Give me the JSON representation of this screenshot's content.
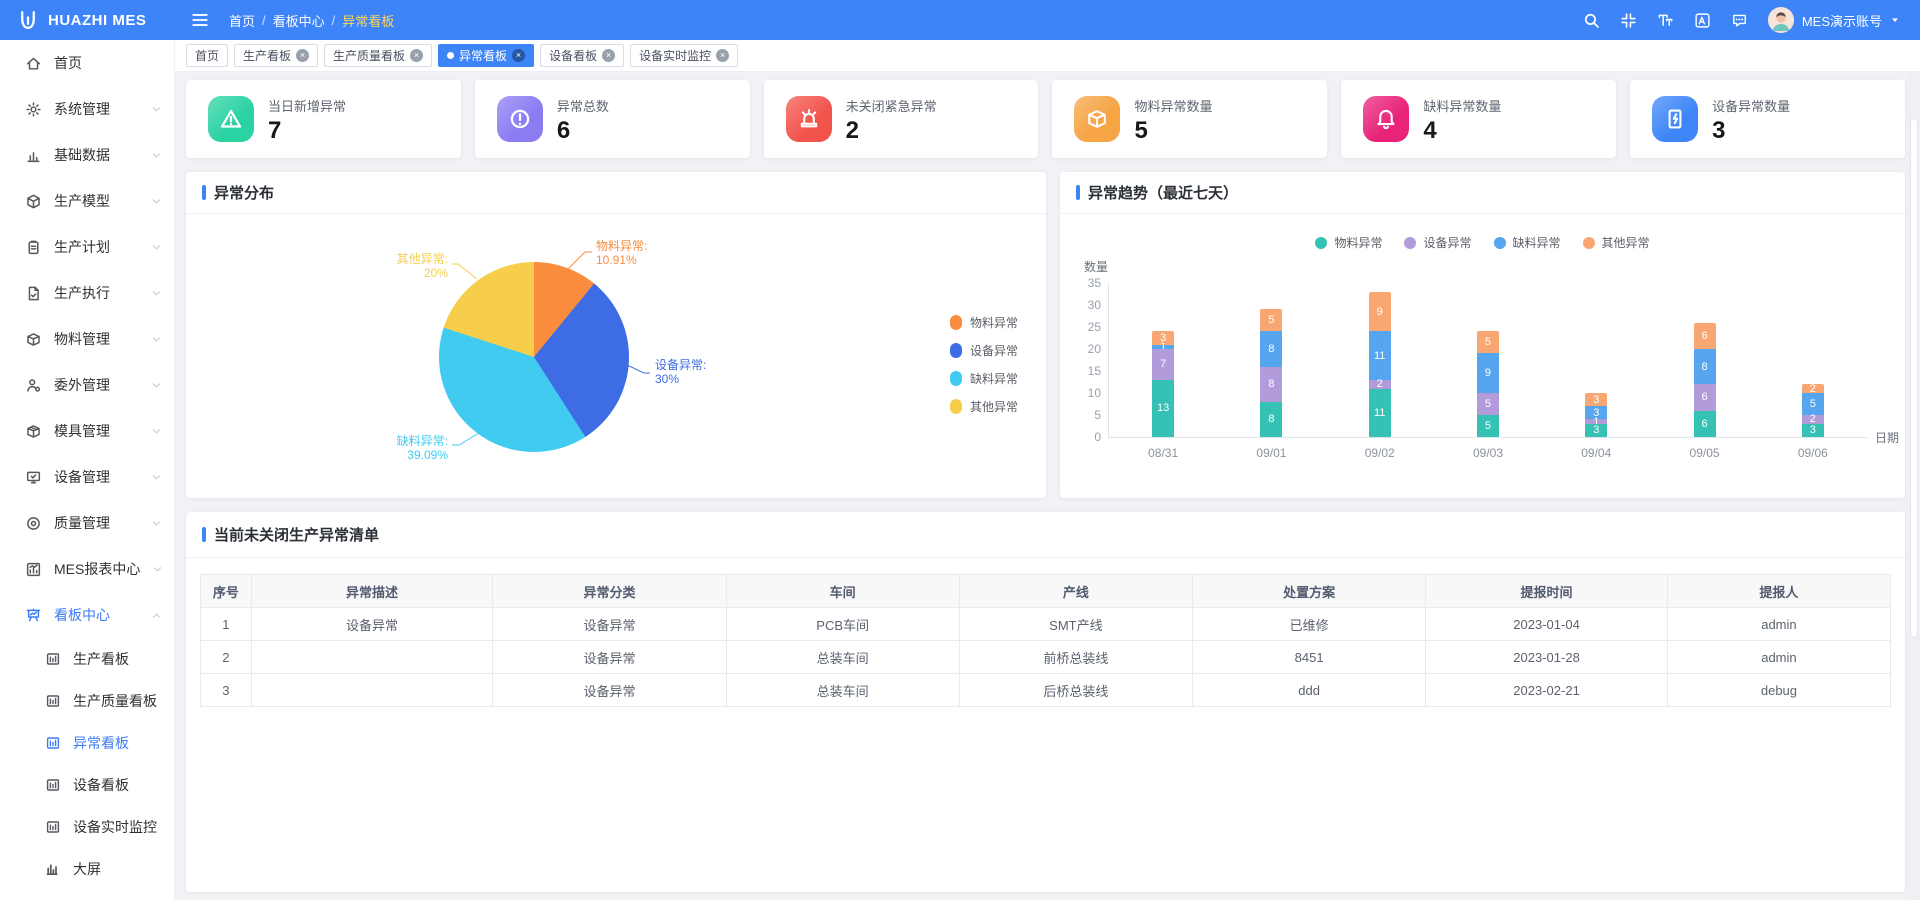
{
  "header": {
    "logo_text": "HUAZHI MES",
    "breadcrumb": [
      "首页",
      "看板中心",
      "异常看板"
    ],
    "username": "MES演示账号"
  },
  "tabs": [
    {
      "label": "首页",
      "closable": false,
      "active": false
    },
    {
      "label": "生产看板",
      "closable": true,
      "active": false
    },
    {
      "label": "生产质量看板",
      "closable": true,
      "active": false
    },
    {
      "label": "异常看板",
      "closable": true,
      "active": true
    },
    {
      "label": "设备看板",
      "closable": true,
      "active": false
    },
    {
      "label": "设备实时监控",
      "closable": true,
      "active": false
    }
  ],
  "sidebar": {
    "items": [
      {
        "label": "首页",
        "icon": "home-icon",
        "expandable": false
      },
      {
        "label": "系统管理",
        "icon": "gear-icon",
        "expandable": true
      },
      {
        "label": "基础数据",
        "icon": "base-data-icon",
        "expandable": true
      },
      {
        "label": "生产模型",
        "icon": "model-icon",
        "expandable": true
      },
      {
        "label": "生产计划",
        "icon": "plan-icon",
        "expandable": true
      },
      {
        "label": "生产执行",
        "icon": "execute-icon",
        "expandable": true
      },
      {
        "label": "物料管理",
        "icon": "material-icon",
        "expandable": true
      },
      {
        "label": "委外管理",
        "icon": "outsource-icon",
        "expandable": true
      },
      {
        "label": "模具管理",
        "icon": "mold-icon",
        "expandable": true
      },
      {
        "label": "设备管理",
        "icon": "equipment-icon",
        "expandable": true
      },
      {
        "label": "质量管理",
        "icon": "quality-icon",
        "expandable": true
      },
      {
        "label": "MES报表中心",
        "icon": "report-icon",
        "expandable": true
      },
      {
        "label": "看板中心",
        "icon": "board-icon",
        "expandable": true,
        "expanded": true,
        "active": true,
        "children": [
          {
            "label": "生产看板",
            "icon": "panel-icon",
            "active": false
          },
          {
            "label": "生产质量看板",
            "icon": "panel-icon",
            "active": false
          },
          {
            "label": "异常看板",
            "icon": "panel-icon",
            "active": true
          },
          {
            "label": "设备看板",
            "icon": "panel-icon",
            "active": false
          },
          {
            "label": "设备实时监控",
            "icon": "panel-icon",
            "active": false
          },
          {
            "label": "大屏",
            "icon": "bigscreen-icon",
            "active": false
          }
        ]
      }
    ]
  },
  "stats": [
    {
      "label": "当日新增异常",
      "value": "7",
      "icon": "warning-triangle-icon",
      "color": "#2BD2A2"
    },
    {
      "label": "异常总数",
      "value": "6",
      "icon": "exclamation-circle-icon",
      "color": "#8B7CF2"
    },
    {
      "label": "未关闭紧急异常",
      "value": "2",
      "icon": "siren-icon",
      "color": "#F2544C"
    },
    {
      "label": "物料异常数量",
      "value": "5",
      "icon": "box-icon",
      "color": "#F6A444"
    },
    {
      "label": "缺料异常数量",
      "value": "4",
      "icon": "bell-icon",
      "color": "#E9237A"
    },
    {
      "label": "设备异常数量",
      "value": "3",
      "icon": "device-icon",
      "color": "#3E86F7"
    }
  ],
  "chart_data": [
    {
      "type": "pie",
      "title": "异常分布",
      "labels": [
        "物料异常",
        "设备异常",
        "缺料异常",
        "其他异常"
      ],
      "values_pct": [
        10.91,
        30,
        39.09,
        20
      ],
      "colors": [
        "#F98D3D",
        "#3E6CE4",
        "#41CBF1",
        "#F6CE4B"
      ],
      "legend_position": "right"
    },
    {
      "type": "bar",
      "stacked": true,
      "title": "异常趋势（最近七天）",
      "categories": [
        "08/31",
        "09/01",
        "09/02",
        "09/03",
        "09/04",
        "09/05",
        "09/06"
      ],
      "series": [
        {
          "name": "物料异常",
          "color": "#35C2B5",
          "values": [
            13,
            8,
            11,
            5,
            3,
            6,
            3
          ]
        },
        {
          "name": "设备异常",
          "color": "#B29BDB",
          "values": [
            7,
            8,
            2,
            5,
            1,
            6,
            2
          ]
        },
        {
          "name": "缺料异常",
          "color": "#56A5EF",
          "values": [
            1,
            8,
            11,
            9,
            3,
            8,
            5
          ]
        },
        {
          "name": "其他异常",
          "color": "#F9A772",
          "values": [
            3,
            5,
            9,
            5,
            3,
            6,
            2
          ]
        }
      ],
      "xlabel": "日期",
      "ylabel": "数量",
      "ylim": [
        0,
        35
      ],
      "ytick_step": 5,
      "legend_position": "top"
    }
  ],
  "table": {
    "title": "当前未关闭生产异常清单",
    "columns": [
      "序号",
      "异常描述",
      "异常分类",
      "车间",
      "产线",
      "处置方案",
      "提报时间",
      "提报人"
    ],
    "rows": [
      [
        "1",
        "设备异常",
        "设备异常",
        "PCB车间",
        "SMT产线",
        "已维修",
        "2023-01-04",
        "admin"
      ],
      [
        "2",
        "",
        "设备异常",
        "总装车间",
        "前桥总装线",
        "8451",
        "2023-01-28",
        "admin"
      ],
      [
        "3",
        "",
        "设备异常",
        "总装车间",
        "后桥总装线",
        "ddd",
        "2023-02-21",
        "debug"
      ]
    ]
  },
  "colors": {
    "header_blue": "#3D84F8",
    "active_blue": "#3E7CF6",
    "breadcrumb_active": "#FBD460",
    "page_bg": "#f0f2f5"
  }
}
